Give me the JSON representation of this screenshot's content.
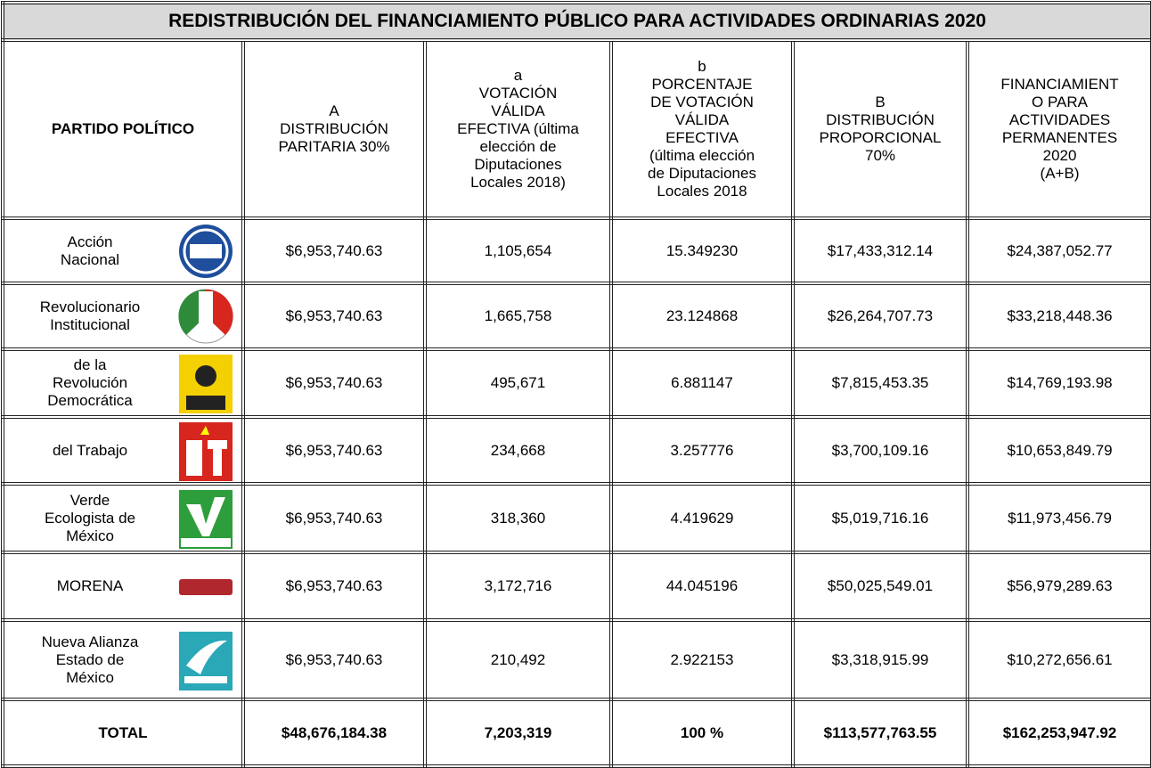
{
  "table": {
    "title": "REDISTRIBUCIÓN DEL FINANCIAMIENTO PÚBLICO PARA ACTIVIDADES ORDINARIAS 2020",
    "header": [
      [
        "PARTIDO POLÍTICO"
      ],
      [
        "A",
        "DISTRIBUCIÓN",
        "PARITARIA 30%"
      ],
      [
        "a",
        "VOTACIÓN",
        "VÁLIDA",
        "EFECTIVA (última",
        "elección de",
        "Diputaciones",
        "Locales 2018)"
      ],
      [
        "b",
        "PORCENTAJE",
        "DE VOTACIÓN",
        "VÁLIDA",
        "EFECTIVA",
        "(última elección",
        "de Diputaciones",
        "Locales 2018"
      ],
      [
        "B",
        "DISTRIBUCIÓN",
        "PROPORCIONAL",
        "70%"
      ],
      [
        "FINANCIAMIENT",
        "O PARA",
        "ACTIVIDADES",
        "PERMANENTES",
        "2020",
        "(A+B)"
      ]
    ],
    "rows": [
      [
        [
          "Acción",
          "Nacional"
        ],
        "$6,953,740.63",
        "1,105,654",
        "15.349230",
        "$17,433,312.14",
        "$24,387,052.77"
      ],
      [
        [
          "Revolucionario",
          "Institucional"
        ],
        "$6,953,740.63",
        "1,665,758",
        "23.124868",
        "$26,264,707.73",
        "$33,218,448.36"
      ],
      [
        [
          "de la",
          "Revolución",
          "Democrática"
        ],
        "$6,953,740.63",
        "495,671",
        "6.881147",
        "$7,815,453.35",
        "$14,769,193.98"
      ],
      [
        [
          "del Trabajo"
        ],
        "$6,953,740.63",
        "234,668",
        "3.257776",
        "$3,700,109.16",
        "$10,653,849.79"
      ],
      [
        [
          "Verde",
          "Ecologista de",
          "México"
        ],
        "$6,953,740.63",
        "318,360",
        "4.419629",
        "$5,019,716.16",
        "$11,973,456.79"
      ],
      [
        [
          "MORENA"
        ],
        "$6,953,740.63",
        "3,172,716",
        "44.045196",
        "$50,025,549.01",
        "$56,979,289.63"
      ],
      [
        [
          "Nueva Alianza",
          "Estado de",
          "México"
        ],
        "$6,953,740.63",
        "210,492",
        "2.922153",
        "$3,318,915.99",
        "$10,272,656.61"
      ]
    ],
    "total": [
      "TOTAL",
      "$48,676,184.38",
      "7,203,319",
      "100 %",
      "$113,577,763.55",
      "$162,253,947.92"
    ]
  }
}
